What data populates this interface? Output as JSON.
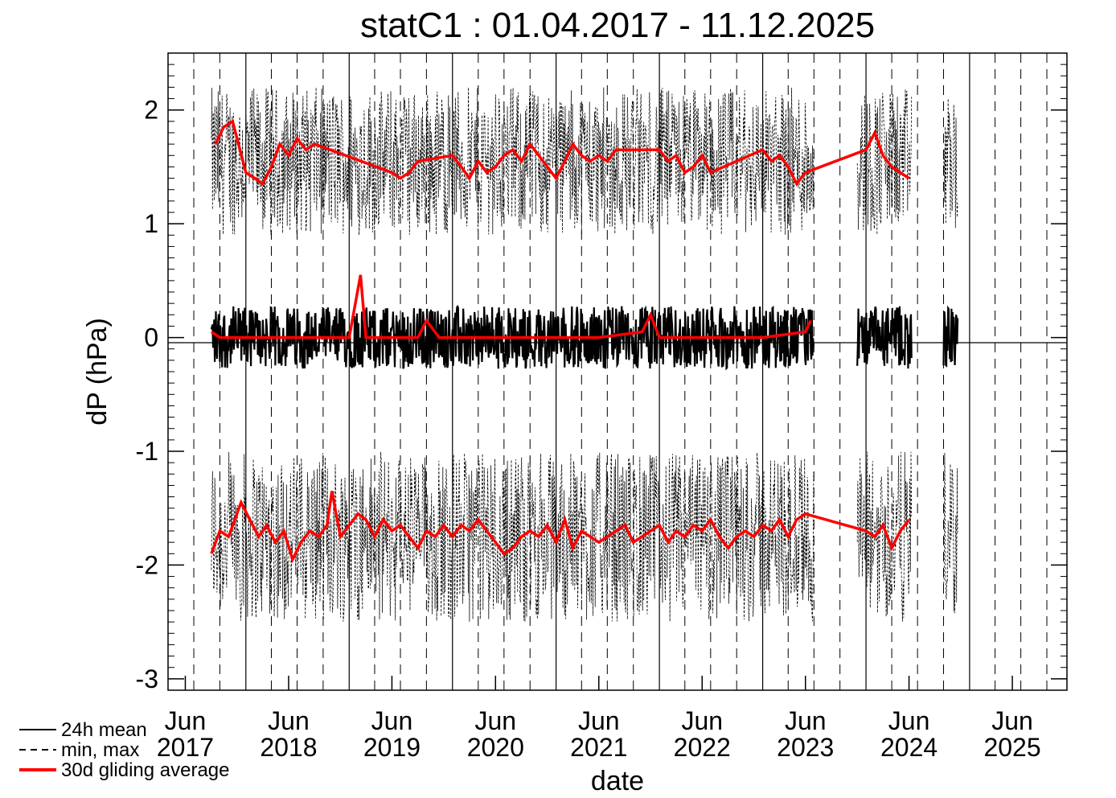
{
  "chart_data": {
    "type": "line",
    "title": "statC1 : 01.04.2017 - 11.12.2025",
    "xlabel": "date",
    "ylabel": "dP (hPa)",
    "xlim": [
      "2017-04-01",
      "2025-12-11"
    ],
    "ylim": [
      -3.1,
      2.5
    ],
    "y_ticks": [
      2,
      1,
      0,
      -1,
      -2,
      -3
    ],
    "y_tick_labels": [
      "2",
      "1",
      "0",
      "-1",
      "-2",
      "-3"
    ],
    "x_tick_labels": [
      {
        "month": "Jun",
        "year": "2017"
      },
      {
        "month": "Jun",
        "year": "2018"
      },
      {
        "month": "Jun",
        "year": "2019"
      },
      {
        "month": "Jun",
        "year": "2020"
      },
      {
        "month": "Jun",
        "year": "2021"
      },
      {
        "month": "Jun",
        "year": "2022"
      },
      {
        "month": "Jun",
        "year": "2023"
      },
      {
        "month": "Jun",
        "year": "2024"
      },
      {
        "month": "Jun",
        "year": "2025"
      }
    ],
    "legend": {
      "placement": "bottom-left",
      "entries": [
        "24h mean",
        "min, max",
        "30d gliding average"
      ]
    },
    "colors": {
      "mean": "#000000",
      "minmax": "#000000",
      "average": "#ff0000"
    },
    "series": [
      {
        "name": "30d gliding average",
        "points": [
          [
            "2017-09-01",
            0.05
          ],
          [
            "2017-10-01",
            0.0
          ],
          [
            "2017-11-01",
            0.0
          ],
          [
            "2017-12-01",
            0.0
          ],
          [
            "2018-01-01",
            0.0
          ],
          [
            "2018-02-01",
            0.0
          ],
          [
            "2018-03-01",
            0.0
          ],
          [
            "2018-05-01",
            0.0
          ],
          [
            "2018-07-01",
            0.0
          ],
          [
            "2018-09-01",
            0.0
          ],
          [
            "2018-11-01",
            0.0
          ],
          [
            "2019-01-01",
            0.0
          ],
          [
            "2019-02-10",
            0.55
          ],
          [
            "2019-03-01",
            0.0
          ],
          [
            "2019-05-01",
            0.0
          ],
          [
            "2019-07-01",
            0.0
          ],
          [
            "2019-09-01",
            0.0
          ],
          [
            "2019-10-01",
            0.15
          ],
          [
            "2019-11-15",
            0.0
          ],
          [
            "2020-06-01",
            0.0
          ],
          [
            "2021-01-01",
            0.0
          ],
          [
            "2021-06-01",
            0.0
          ],
          [
            "2021-11-01",
            0.05
          ],
          [
            "2021-12-01",
            0.2
          ],
          [
            "2022-01-01",
            0.0
          ],
          [
            "2022-06-01",
            0.0
          ],
          [
            "2022-10-01",
            0.0
          ],
          [
            "2023-01-01",
            0.0
          ],
          [
            "2023-06-01",
            0.05
          ],
          [
            "2023-06-20",
            0.15
          ]
        ]
      },
      {
        "name": "30d gliding average (max)",
        "points": [
          [
            "2017-09-15",
            1.7
          ],
          [
            "2017-10-15",
            1.85
          ],
          [
            "2017-11-15",
            1.9
          ],
          [
            "2018-01-01",
            1.45
          ],
          [
            "2018-02-01",
            1.4
          ],
          [
            "2018-03-01",
            1.35
          ],
          [
            "2018-04-01",
            1.5
          ],
          [
            "2018-05-01",
            1.7
          ],
          [
            "2018-06-01",
            1.6
          ],
          [
            "2018-07-01",
            1.75
          ],
          [
            "2018-08-01",
            1.65
          ],
          [
            "2018-09-01",
            1.7
          ],
          [
            "2019-06-01",
            1.45
          ],
          [
            "2019-07-01",
            1.4
          ],
          [
            "2019-08-01",
            1.45
          ],
          [
            "2019-09-01",
            1.55
          ],
          [
            "2020-01-01",
            1.6
          ],
          [
            "2020-02-01",
            1.5
          ],
          [
            "2020-03-01",
            1.4
          ],
          [
            "2020-04-01",
            1.55
          ],
          [
            "2020-05-01",
            1.45
          ],
          [
            "2020-06-01",
            1.5
          ],
          [
            "2020-07-01",
            1.6
          ],
          [
            "2020-08-01",
            1.65
          ],
          [
            "2020-09-01",
            1.55
          ],
          [
            "2020-10-01",
            1.7
          ],
          [
            "2020-11-01",
            1.6
          ],
          [
            "2020-12-01",
            1.5
          ],
          [
            "2021-01-01",
            1.4
          ],
          [
            "2021-02-01",
            1.55
          ],
          [
            "2021-03-01",
            1.7
          ],
          [
            "2021-04-01",
            1.6
          ],
          [
            "2021-05-01",
            1.55
          ],
          [
            "2021-06-01",
            1.6
          ],
          [
            "2021-07-01",
            1.55
          ],
          [
            "2021-08-01",
            1.65
          ],
          [
            "2022-01-01",
            1.65
          ],
          [
            "2022-02-01",
            1.55
          ],
          [
            "2022-03-01",
            1.6
          ],
          [
            "2022-04-01",
            1.45
          ],
          [
            "2022-05-01",
            1.5
          ],
          [
            "2022-06-01",
            1.6
          ],
          [
            "2022-07-01",
            1.45
          ],
          [
            "2023-01-01",
            1.65
          ],
          [
            "2023-02-01",
            1.55
          ],
          [
            "2023-03-01",
            1.6
          ],
          [
            "2023-04-01",
            1.5
          ],
          [
            "2023-05-01",
            1.35
          ],
          [
            "2023-06-01",
            1.45
          ],
          [
            "2024-01-01",
            1.65
          ],
          [
            "2024-02-01",
            1.8
          ],
          [
            "2024-03-01",
            1.6
          ],
          [
            "2024-04-01",
            1.5
          ],
          [
            "2024-05-01",
            1.45
          ],
          [
            "2024-06-01",
            1.4
          ]
        ]
      },
      {
        "name": "30d gliding average (min)",
        "points": [
          [
            "2017-09-01",
            -1.9
          ],
          [
            "2017-10-01",
            -1.7
          ],
          [
            "2017-11-01",
            -1.75
          ],
          [
            "2017-12-15",
            -1.45
          ],
          [
            "2018-01-15",
            -1.6
          ],
          [
            "2018-02-15",
            -1.75
          ],
          [
            "2018-03-15",
            -1.65
          ],
          [
            "2018-04-15",
            -1.8
          ],
          [
            "2018-05-15",
            -1.7
          ],
          [
            "2018-06-15",
            -1.95
          ],
          [
            "2018-07-15",
            -1.8
          ],
          [
            "2018-08-15",
            -1.7
          ],
          [
            "2018-09-15",
            -1.75
          ],
          [
            "2018-10-15",
            -1.65
          ],
          [
            "2018-11-01",
            -1.35
          ],
          [
            "2018-12-01",
            -1.75
          ],
          [
            "2019-01-01",
            -1.65
          ],
          [
            "2019-02-01",
            -1.55
          ],
          [
            "2019-03-01",
            -1.6
          ],
          [
            "2019-04-01",
            -1.75
          ],
          [
            "2019-05-01",
            -1.6
          ],
          [
            "2019-06-01",
            -1.7
          ],
          [
            "2019-07-01",
            -1.65
          ],
          [
            "2019-08-01",
            -1.75
          ],
          [
            "2019-09-01",
            -1.85
          ],
          [
            "2019-10-01",
            -1.7
          ],
          [
            "2019-11-01",
            -1.75
          ],
          [
            "2019-12-01",
            -1.65
          ],
          [
            "2020-01-01",
            -1.75
          ],
          [
            "2020-02-01",
            -1.65
          ],
          [
            "2020-03-01",
            -1.7
          ],
          [
            "2020-04-01",
            -1.6
          ],
          [
            "2020-05-01",
            -1.7
          ],
          [
            "2020-06-01",
            -1.8
          ],
          [
            "2020-07-01",
            -1.9
          ],
          [
            "2020-08-01",
            -1.85
          ],
          [
            "2020-09-01",
            -1.75
          ],
          [
            "2020-10-01",
            -1.7
          ],
          [
            "2020-11-01",
            -1.75
          ],
          [
            "2020-12-01",
            -1.65
          ],
          [
            "2021-01-01",
            -1.8
          ],
          [
            "2021-02-01",
            -1.6
          ],
          [
            "2021-03-01",
            -1.85
          ],
          [
            "2021-04-01",
            -1.7
          ],
          [
            "2021-05-01",
            -1.75
          ],
          [
            "2021-06-01",
            -1.8
          ],
          [
            "2021-07-01",
            -1.75
          ],
          [
            "2021-08-01",
            -1.7
          ],
          [
            "2021-09-01",
            -1.65
          ],
          [
            "2021-10-01",
            -1.8
          ],
          [
            "2021-11-01",
            -1.75
          ],
          [
            "2021-12-01",
            -1.7
          ],
          [
            "2022-01-01",
            -1.65
          ],
          [
            "2022-02-01",
            -1.8
          ],
          [
            "2022-03-01",
            -1.7
          ],
          [
            "2022-04-01",
            -1.75
          ],
          [
            "2022-05-01",
            -1.65
          ],
          [
            "2022-06-01",
            -1.7
          ],
          [
            "2022-07-01",
            -1.6
          ],
          [
            "2022-08-01",
            -1.75
          ],
          [
            "2022-09-01",
            -1.85
          ],
          [
            "2022-10-01",
            -1.75
          ],
          [
            "2022-11-01",
            -1.7
          ],
          [
            "2022-12-01",
            -1.75
          ],
          [
            "2023-01-01",
            -1.65
          ],
          [
            "2023-02-01",
            -1.7
          ],
          [
            "2023-03-01",
            -1.6
          ],
          [
            "2023-04-01",
            -1.75
          ],
          [
            "2023-05-01",
            -1.6
          ],
          [
            "2023-06-01",
            -1.55
          ],
          [
            "2024-01-01",
            -1.7
          ],
          [
            "2024-02-01",
            -1.75
          ],
          [
            "2024-03-01",
            -1.65
          ],
          [
            "2024-04-01",
            -1.85
          ],
          [
            "2024-05-01",
            -1.7
          ],
          [
            "2024-06-01",
            -1.6
          ]
        ]
      }
    ]
  }
}
